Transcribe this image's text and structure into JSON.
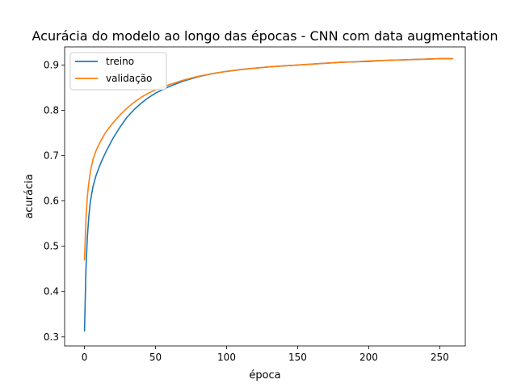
{
  "chart_data": {
    "type": "line",
    "title": "Acurácia do modelo ao longo das épocas - CNN com data augmentation",
    "xlabel": "época",
    "ylabel": "acurácia",
    "xlim": [
      -14,
      268
    ],
    "ylim": [
      0.28,
      0.94
    ],
    "x_ticks": [
      0,
      50,
      100,
      150,
      200,
      250
    ],
    "y_ticks": [
      0.3,
      0.4,
      0.5,
      0.6,
      0.7,
      0.8,
      0.9
    ],
    "grid": false,
    "legend_position": "top-left",
    "series": [
      {
        "name": "treino",
        "color": "#1f77b4",
        "x": [
          0,
          1,
          2,
          3,
          4,
          5,
          6,
          8,
          10,
          12,
          15,
          20,
          25,
          30,
          35,
          40,
          45,
          50,
          60,
          70,
          80,
          90,
          100,
          110,
          120,
          130,
          140,
          150,
          160,
          170,
          180,
          190,
          200,
          210,
          220,
          230,
          240,
          250,
          259
        ],
        "y": [
          0.313,
          0.45,
          0.52,
          0.565,
          0.595,
          0.615,
          0.632,
          0.655,
          0.672,
          0.688,
          0.708,
          0.738,
          0.763,
          0.785,
          0.802,
          0.816,
          0.828,
          0.838,
          0.853,
          0.865,
          0.874,
          0.881,
          0.886,
          0.89,
          0.893,
          0.896,
          0.898,
          0.9,
          0.902,
          0.904,
          0.906,
          0.907,
          0.908,
          0.91,
          0.911,
          0.912,
          0.913,
          0.914,
          0.914
        ]
      },
      {
        "name": "validação",
        "color": "#ff7f0e",
        "x": [
          0,
          1,
          2,
          3,
          4,
          5,
          6,
          8,
          10,
          12,
          15,
          20,
          25,
          30,
          35,
          40,
          45,
          50,
          60,
          70,
          80,
          90,
          100,
          110,
          120,
          130,
          140,
          150,
          160,
          170,
          180,
          190,
          200,
          210,
          220,
          230,
          240,
          250,
          259
        ],
        "y": [
          0.47,
          0.56,
          0.61,
          0.64,
          0.662,
          0.678,
          0.692,
          0.71,
          0.724,
          0.736,
          0.752,
          0.772,
          0.79,
          0.805,
          0.818,
          0.829,
          0.838,
          0.845,
          0.857,
          0.867,
          0.875,
          0.881,
          0.886,
          0.89,
          0.893,
          0.896,
          0.898,
          0.9,
          0.902,
          0.904,
          0.906,
          0.907,
          0.909,
          0.91,
          0.911,
          0.912,
          0.913,
          0.914,
          0.914
        ]
      }
    ]
  }
}
